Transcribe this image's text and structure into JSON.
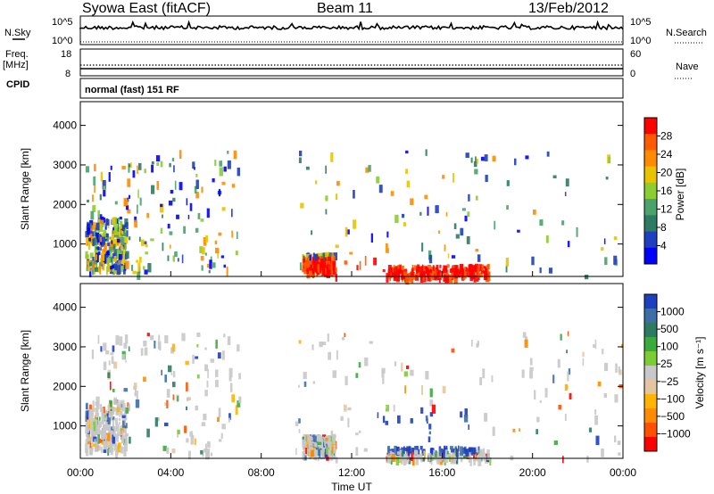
{
  "header": {
    "station": "Syowa East (fitACF)",
    "beam": "Beam 11",
    "date": "13/Feb/2012"
  },
  "left_labels": {
    "nsky": "N.Sky",
    "freq": "Freq.",
    "freq_unit": "[MHz]",
    "cpid": "CPID"
  },
  "right_labels": {
    "nsearch": "N.Search",
    "nave": "Nave"
  },
  "cpid_text": "normal (fast) 151 RF",
  "chart_data": [
    {
      "type": "line",
      "name": "noise_panel",
      "left_ticks": [
        "10^5",
        "10^0"
      ],
      "right_ticks": [
        "10^5",
        "10^0"
      ],
      "note_series": [
        "N.Sky (solid)",
        "N.Search (dotted)"
      ]
    },
    {
      "type": "line",
      "name": "freq_nave_panel",
      "left_ticks": [
        "18",
        "8"
      ],
      "right_ticks": [
        "60",
        "0"
      ],
      "freq_mhz": 12,
      "nave_level": 30
    },
    {
      "type": "heatmap",
      "name": "power_panel",
      "ylabel": "Slant Range [km]",
      "yticks": [
        1000,
        2000,
        3000,
        4000
      ],
      "ylim": [
        180,
        4600
      ],
      "xlim_hours": [
        0,
        24
      ],
      "colorbar_label": "Power [dB]",
      "colorbar_ticks": [
        "28",
        "24",
        "20",
        "16",
        "12",
        "8",
        "4"
      ],
      "colorbar_colors": [
        "#ff0000",
        "#ff5a00",
        "#ff8c00",
        "#e8c400",
        "#8ccd32",
        "#4aa36a",
        "#2e7b63",
        "#1e3fc0",
        "#0000ff"
      ]
    },
    {
      "type": "heatmap",
      "name": "velocity_panel",
      "ylabel": "Slant Range [km]",
      "yticks": [
        1000,
        2000,
        3000,
        4000
      ],
      "ylim": [
        180,
        4600
      ],
      "xlim_hours": [
        0,
        24
      ],
      "xticks": [
        "00:00",
        "04:00",
        "08:00",
        "12:00",
        "16:00",
        "20:00",
        "00:00"
      ],
      "xlabel": "Time UT",
      "colorbar_label": "Velocity  [m s⁻¹]",
      "colorbar_ticks": [
        "1000",
        "500",
        "100",
        "25",
        "−25",
        "−100",
        "−500",
        "−1000"
      ],
      "colorbar_colors": [
        "#1e3fc0",
        "#3c6fa8",
        "#2e7b63",
        "#3daa3d",
        "#7ccd34",
        "#c8c8c8",
        "#e3c6a1",
        "#ffb400",
        "#ff8c00",
        "#ff5000",
        "#ff0000"
      ]
    }
  ]
}
